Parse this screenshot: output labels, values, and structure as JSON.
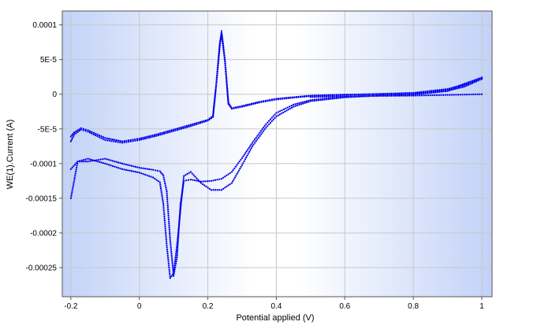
{
  "chart_data": {
    "type": "scatter",
    "title": "",
    "xlabel": "Potential applied (V)",
    "ylabel": "WE(1).Current (A)",
    "xlim": [
      -0.225,
      1.03
    ],
    "ylim": [
      -0.000292,
      0.00012
    ],
    "x_ticks": [
      {
        "value": -0.2,
        "label": "-0.2"
      },
      {
        "value": 0,
        "label": "0"
      },
      {
        "value": 0.2,
        "label": "0.2"
      },
      {
        "value": 0.4,
        "label": "0.4"
      },
      {
        "value": 0.6,
        "label": "0.6"
      },
      {
        "value": 0.8,
        "label": "0.8"
      },
      {
        "value": 1.0,
        "label": "1"
      }
    ],
    "y_ticks": [
      {
        "value": 0.0001,
        "label": "0.0001"
      },
      {
        "value": 5e-05,
        "label": "5E-5"
      },
      {
        "value": 0,
        "label": "0"
      },
      {
        "value": -5e-05,
        "label": "-5E-5"
      },
      {
        "value": -0.0001,
        "label": "-0.0001"
      },
      {
        "value": -0.00015,
        "label": "-0.00015"
      },
      {
        "value": -0.0002,
        "label": "-0.0002"
      },
      {
        "value": -0.00025,
        "label": "-0.00025"
      }
    ],
    "grid": true,
    "legend": "none",
    "colors": {
      "marker": "#0000ee",
      "grid": "#c8c8c8",
      "background_edge": "#c2d2f7",
      "background_center": "#ffffff"
    },
    "series": [
      {
        "x": [
          -0.2,
          -0.19,
          -0.17,
          -0.15,
          -0.1,
          -0.05,
          0.0,
          0.05,
          0.1,
          0.15,
          0.2,
          0.215,
          0.225,
          0.235,
          0.24,
          0.25,
          0.26,
          0.27,
          0.3,
          0.35,
          0.4,
          0.5,
          0.6,
          0.7,
          0.8,
          0.9,
          0.95,
          1.0
        ],
        "y": [
          -6.8e-05,
          -5.8e-05,
          -5.1e-05,
          -5.4e-05,
          -6.6e-05,
          -7e-05,
          -6.6e-05,
          -6e-05,
          -5.3e-05,
          -4.6e-05,
          -3.8e-05,
          -3.3e-05,
          1.5e-05,
          7e-05,
          9.1e-05,
          5e-05,
          -1.2e-05,
          -2e-05,
          -1.7e-05,
          -1.1e-05,
          -6.5e-06,
          -2e-06,
          -5e-07,
          0.0,
          1.5e-06,
          5e-06,
          1.1e-05,
          2.2e-05
        ]
      },
      {
        "x": [
          1.0,
          0.9,
          0.8,
          0.7,
          0.6,
          0.5,
          0.45,
          0.4,
          0.37,
          0.33,
          0.3,
          0.27,
          0.24,
          0.21,
          0.18,
          0.15,
          0.13,
          0.11,
          0.1,
          0.09,
          0.08,
          0.07,
          0.06,
          0.04,
          0.0,
          -0.05,
          -0.1,
          -0.15,
          -0.18,
          -0.2
        ],
        "y": [
          2.2e-05,
          4.5e-06,
          -5e-07,
          -2e-06,
          -4.5e-06,
          -1e-05,
          -1.8e-05,
          -3.2e-05,
          -4.8e-05,
          -7.5e-05,
          -0.000102,
          -0.000128,
          -0.000138,
          -0.000138,
          -0.000128,
          -0.000112,
          -0.000118,
          -0.000218,
          -0.000258,
          -0.000265,
          -0.000218,
          -0.000158,
          -0.000127,
          -0.00012,
          -0.000113,
          -0.000108,
          -0.0001,
          -9.3e-05,
          -9.7e-05,
          -0.00015
        ]
      },
      {
        "x": [
          -0.2,
          -0.19,
          -0.17,
          -0.15,
          -0.1,
          -0.05,
          0.0,
          0.05,
          0.1,
          0.15,
          0.2,
          0.215,
          0.225,
          0.235,
          0.24,
          0.25,
          0.26,
          0.27,
          0.3,
          0.35,
          0.4,
          0.5,
          0.6,
          0.7,
          0.8,
          0.9,
          0.95,
          1.0
        ],
        "y": [
          -6.1e-05,
          -5.5e-05,
          -4.9e-05,
          -5.2e-05,
          -6.3e-05,
          -6.8e-05,
          -6.4e-05,
          -5.8e-05,
          -5.1e-05,
          -4.4e-05,
          -3.7e-05,
          -3.1e-05,
          1.8e-05,
          7.4e-05,
          8.7e-05,
          4.7e-05,
          -1.4e-05,
          -2.1e-05,
          -1.8e-05,
          -1.2e-05,
          -7.5e-06,
          -2.5e-06,
          -1e-06,
          5e-07,
          2e-06,
          7.5e-06,
          1.4e-05,
          2.4e-05
        ]
      },
      {
        "x": [
          1.0,
          0.9,
          0.8,
          0.7,
          0.6,
          0.5,
          0.45,
          0.4,
          0.37,
          0.33,
          0.3,
          0.27,
          0.24,
          0.21,
          0.18,
          0.15,
          0.13,
          0.12,
          0.11,
          0.1,
          0.09,
          0.08,
          0.07,
          0.06,
          0.04,
          0.0,
          -0.05,
          -0.1,
          -0.15,
          -0.18,
          -0.2
        ],
        "y": [
          2.4e-05,
          6.5e-06,
          0.0,
          -1.5e-06,
          -3.5e-06,
          -8.5e-06,
          -1.5e-05,
          -2.7e-05,
          -4.3e-05,
          -7e-05,
          -9.2e-05,
          -0.000112,
          -0.000122,
          -0.000125,
          -0.000126,
          -0.000123,
          -0.000125,
          -0.000158,
          -0.000235,
          -0.000262,
          -0.00021,
          -0.00014,
          -0.000117,
          -0.000111,
          -0.000109,
          -0.000106,
          -0.0001,
          -9.3e-05,
          -9.7e-05,
          -9.7e-05,
          -0.000108
        ]
      },
      {
        "x": [
          1.0,
          0.95,
          0.9,
          0.85,
          0.8,
          0.7,
          0.6,
          0.5
        ],
        "y": [
          0.0,
          -5e-07,
          -1e-06,
          -1.5e-06,
          -2e-06,
          -2.5e-06,
          -3e-06,
          -4e-06
        ]
      }
    ]
  }
}
